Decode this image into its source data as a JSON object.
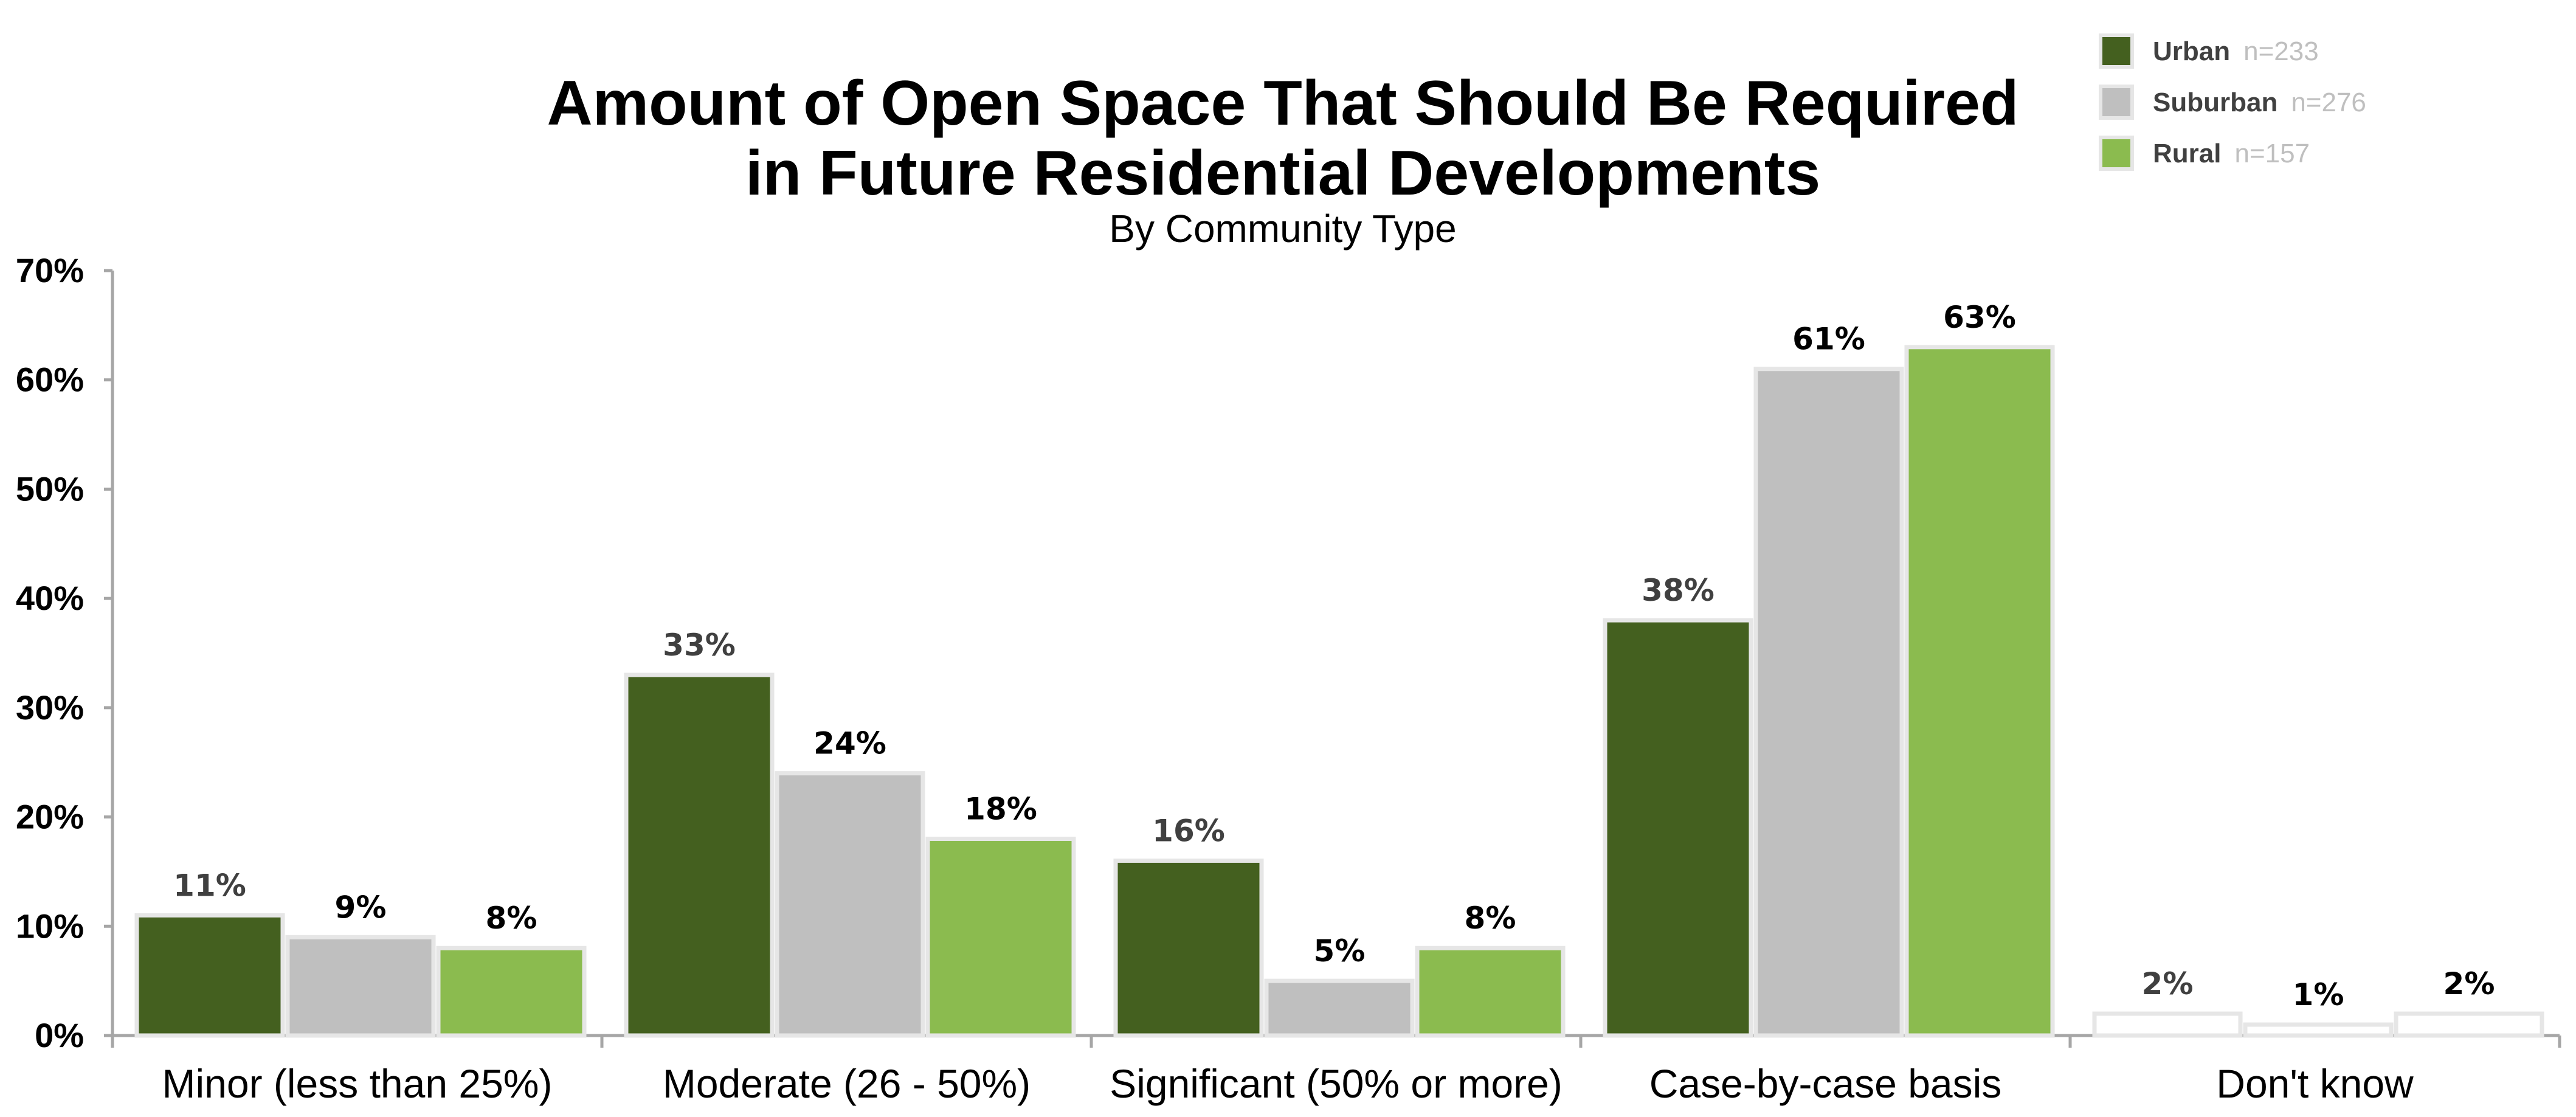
{
  "chart_data": {
    "type": "bar",
    "title_lines": [
      "Amount of Open Space That Should Be Required",
      "in Future Residential Developments"
    ],
    "subtitle": "By Community Type",
    "categories": [
      "Minor (less than 25%)",
      "Moderate (26 - 50%)",
      "Significant (50% or more)",
      "Case-by-case basis",
      "Don't know"
    ],
    "series": [
      {
        "name": "Urban",
        "n_label": "n=233",
        "color": "#44601f",
        "values": [
          11,
          33,
          16,
          38,
          2
        ],
        "labels": [
          "11%",
          "33%",
          "16%",
          "38%",
          "2%"
        ]
      },
      {
        "name": "Suburban",
        "n_label": "n=276",
        "color": "#bfbfbf",
        "values": [
          9,
          24,
          5,
          61,
          1
        ],
        "labels": [
          "9%",
          "24%",
          "5%",
          "61%",
          "1%"
        ]
      },
      {
        "name": "Rural",
        "n_label": "n=157",
        "color": "#8bbb4f",
        "values": [
          8,
          18,
          8,
          63,
          2
        ],
        "labels": [
          "8%",
          "18%",
          "8%",
          "63%",
          "2%"
        ]
      }
    ],
    "hollow_categories": [
      "Don't know"
    ],
    "y_ticks": [
      {
        "value": 0,
        "label": "0%"
      },
      {
        "value": 10,
        "label": "10%"
      },
      {
        "value": 20,
        "label": "20%"
      },
      {
        "value": 30,
        "label": "30%"
      },
      {
        "value": 40,
        "label": "40%"
      },
      {
        "value": 50,
        "label": "50%"
      },
      {
        "value": 60,
        "label": "60%"
      },
      {
        "value": 70,
        "label": "70%"
      }
    ],
    "ylim": [
      0,
      70
    ],
    "grid": false,
    "legend_position": "top-right",
    "colors": {
      "axis": "#a6a6a6",
      "bar_outline": "#e6e6e6",
      "label_urban": "#404040",
      "label_other": "#000000"
    }
  }
}
